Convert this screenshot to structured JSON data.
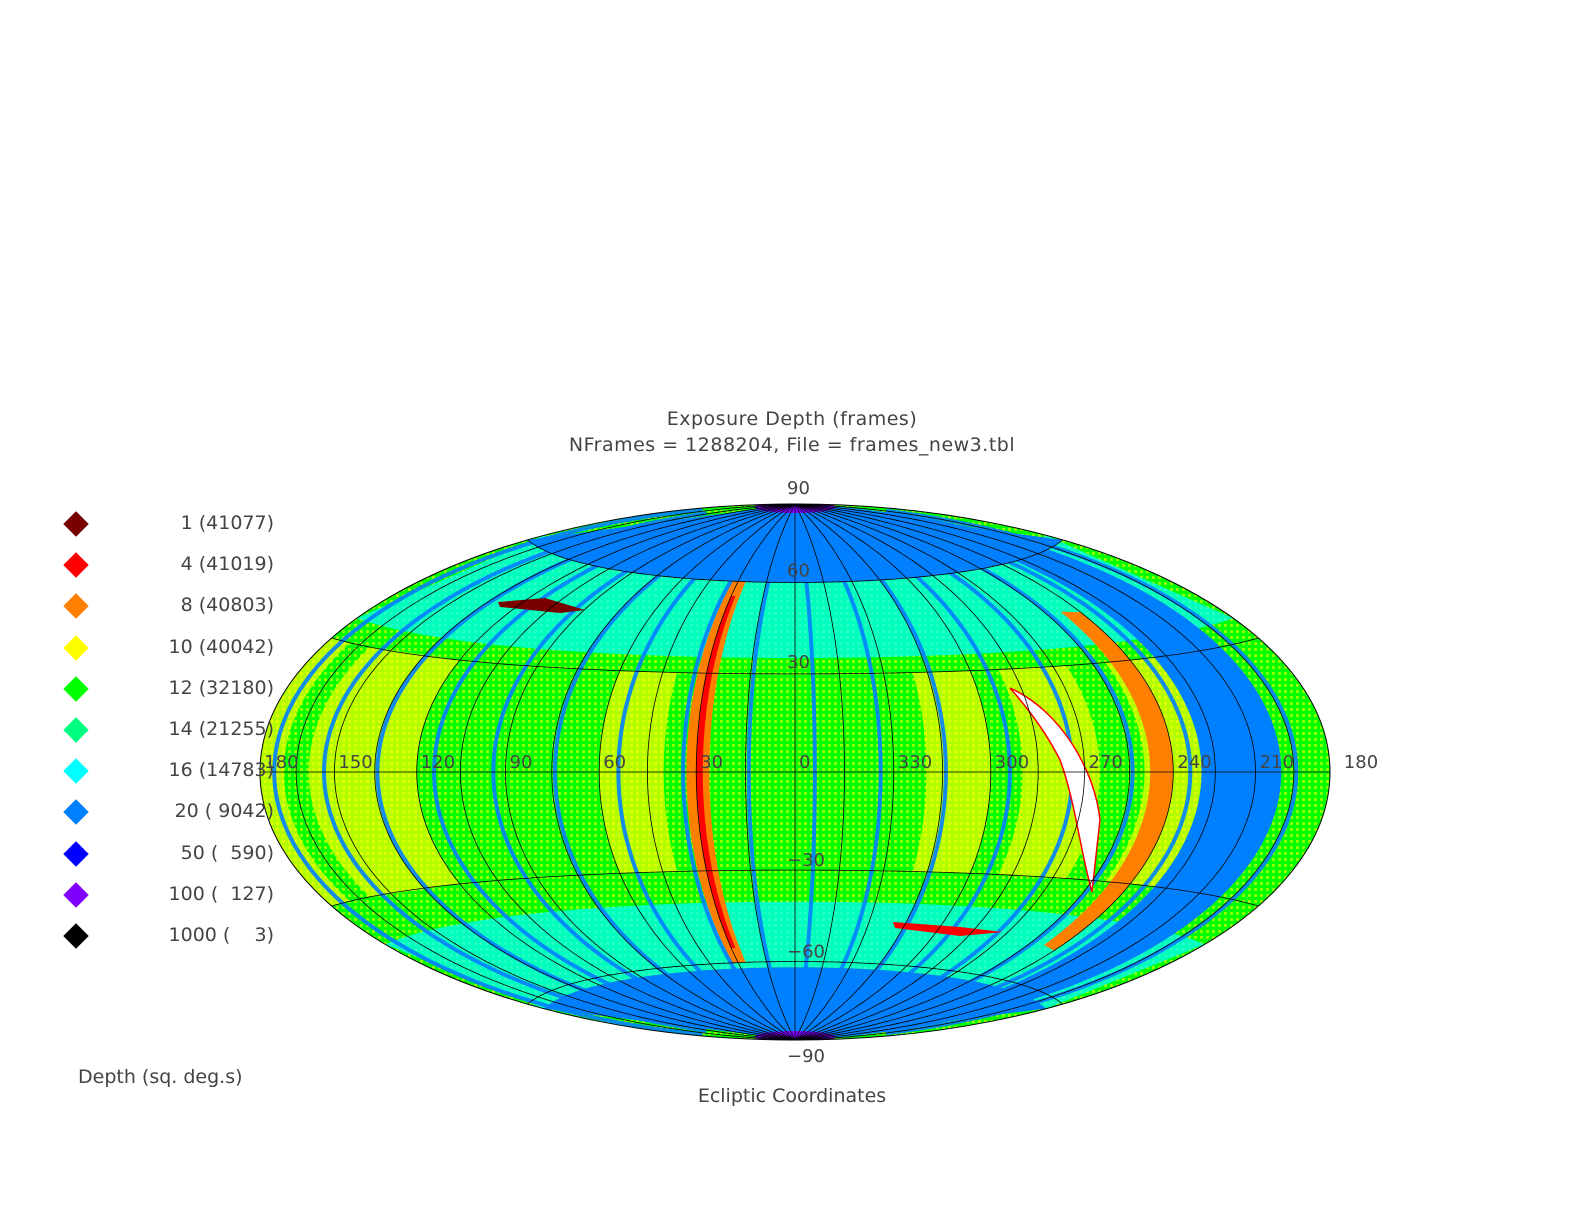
{
  "title": "Exposure Depth (frames)",
  "subtitle": "NFrames = 1288204, File = frames_new3.tbl",
  "legend": [
    {
      "label": "   1 (41077)",
      "color": "#7a0000"
    },
    {
      "label": "   4 (41019)",
      "color": "#ff0000"
    },
    {
      "label": "   8 (40803)",
      "color": "#ff8000"
    },
    {
      "label": "  10 (40042)",
      "color": "#ffff00"
    },
    {
      "label": "  12 (32180)",
      "color": "#00ff00"
    },
    {
      "label": "  14 (21255)",
      "color": "#00ff80"
    },
    {
      "label": "  16 (14783)",
      "color": "#00ffff"
    },
    {
      "label": "  20 ( 9042)",
      "color": "#0080ff"
    },
    {
      "label": "  50 (  590)",
      "color": "#0000ff"
    },
    {
      "label": " 100 (  127)",
      "color": "#8000ff"
    },
    {
      "label": "1000 (    3)",
      "color": "#000000"
    }
  ],
  "legend_title": "Depth (sq. deg.s)",
  "x_label": "Ecliptic Coordinates",
  "projection": "Aitoff / Hammer all-sky ellipse",
  "longitude_labels": [
    "180",
    "150",
    "120",
    "90",
    "60",
    "30",
    "0",
    "330",
    "300",
    "270",
    "240",
    "210",
    "180"
  ],
  "latitude_labels": [
    "90",
    "60",
    "30",
    "-30",
    "-60",
    "-90"
  ],
  "map_colors": {
    "background": "#00ff00",
    "high_latitude": "#0080ff",
    "pole": "#8000ff",
    "stripe": "#0080ff",
    "depth_yellow": "#ffff00",
    "depth_cyan": "#00ffff",
    "depth_orange": "#ff8000",
    "depth_red": "#ff0000",
    "depth_dark": "#7a0000",
    "gap": "#ffffff",
    "grid": "#000000"
  }
}
